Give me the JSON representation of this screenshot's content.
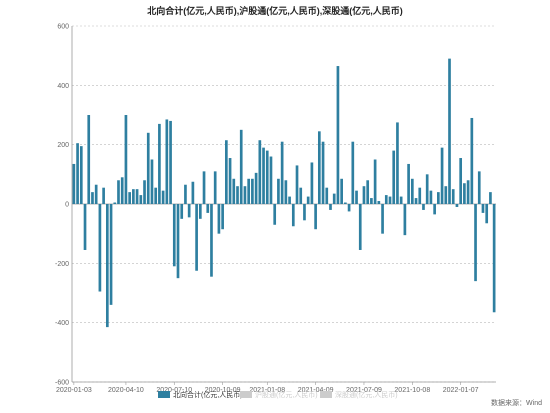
{
  "colors": {
    "primary": "#2e7fa0",
    "inactive": "#cccccc",
    "axis": "#999999",
    "grid": "#bbbbbb",
    "text": "#666666",
    "title": "#222222"
  },
  "source_note": "数据来源：Wind",
  "chart_data": {
    "type": "bar",
    "title": "北向合计(亿元,人民币),沪股通(亿元,人民币),深股通(亿元,人民币)",
    "xlabel": "",
    "ylabel": "",
    "ylim": [
      -600,
      600
    ],
    "yticks": [
      -600,
      -400,
      -200,
      0,
      200,
      400,
      600
    ],
    "grid": true,
    "legend_position": "bottom",
    "xtick_labels": [
      {
        "index": 0,
        "label": "2020-01-03"
      },
      {
        "index": 14,
        "label": "2020-04-10"
      },
      {
        "index": 27,
        "label": "2020-07-10"
      },
      {
        "index": 40,
        "label": "2020-10-09"
      },
      {
        "index": 52,
        "label": "2021-01-08"
      },
      {
        "index": 65,
        "label": "2021-04-09"
      },
      {
        "index": 78,
        "label": "2021-07-09"
      },
      {
        "index": 91,
        "label": "2021-10-08"
      },
      {
        "index": 104,
        "label": "2022-01-07"
      }
    ],
    "series": [
      {
        "name": "北向合计(亿元,人民币)",
        "color": "#2e7fa0",
        "active": true,
        "values": [
          135,
          205,
          195,
          -155,
          300,
          40,
          65,
          -295,
          55,
          -415,
          -340,
          5,
          80,
          90,
          300,
          40,
          50,
          50,
          30,
          80,
          240,
          150,
          55,
          270,
          45,
          285,
          280,
          -210,
          -250,
          -50,
          65,
          -45,
          75,
          -225,
          -50,
          110,
          -30,
          -245,
          110,
          -100,
          -85,
          215,
          155,
          85,
          60,
          250,
          60,
          85,
          85,
          105,
          215,
          190,
          180,
          160,
          -70,
          85,
          210,
          80,
          25,
          -75,
          130,
          55,
          -55,
          25,
          140,
          -85,
          245,
          210,
          55,
          -20,
          35,
          465,
          85,
          5,
          -25,
          210,
          45,
          -155,
          60,
          80,
          20,
          150,
          10,
          -100,
          30,
          25,
          180,
          275,
          25,
          -105,
          135,
          85,
          20,
          55,
          -20,
          100,
          45,
          -35,
          40,
          190,
          60,
          490,
          50,
          -10,
          155,
          70,
          80,
          290,
          -260,
          110,
          -30,
          -65,
          40,
          -365
        ]
      },
      {
        "name": "沪股通(亿元,人民币)",
        "color": "#cccccc",
        "active": false,
        "values": []
      },
      {
        "name": "深股通(亿元,人民币)",
        "color": "#cccccc",
        "active": false,
        "values": []
      }
    ]
  }
}
